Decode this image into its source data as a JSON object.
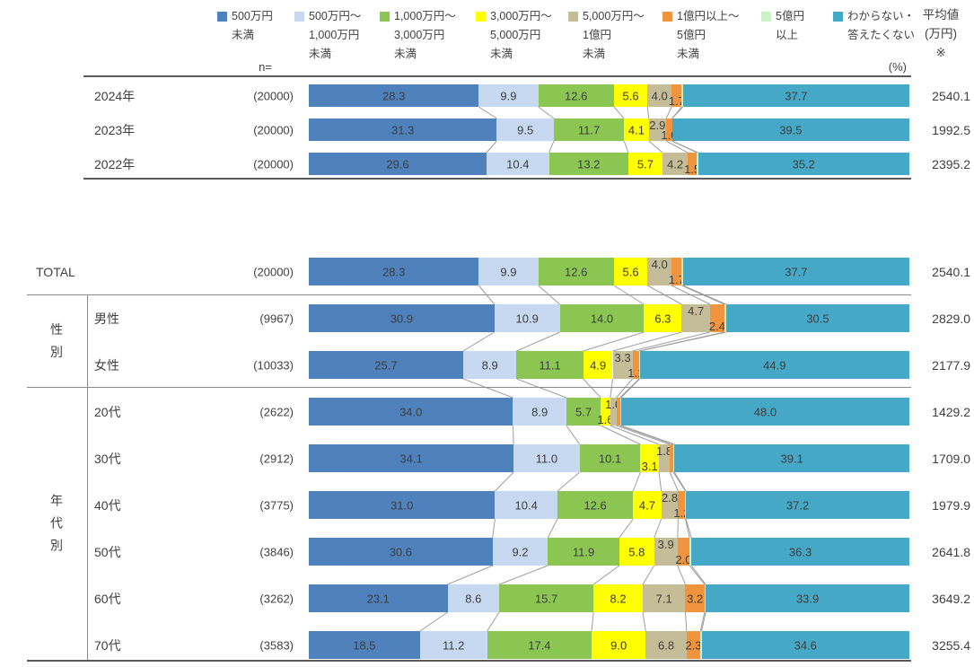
{
  "header": {
    "n_label": "n=",
    "pct_label": "(%)",
    "avg_label_lines": [
      "平均値",
      "(万円)",
      "※"
    ]
  },
  "legend": {
    "items": [
      {
        "label": "500万円未満",
        "lines": [
          "500万円",
          "未満"
        ],
        "color": "#4F81BD"
      },
      {
        "label": "500万円〜1,000万円未満",
        "lines": [
          "500万円〜",
          "1,000万円",
          "未満"
        ],
        "color": "#C6D9F1"
      },
      {
        "label": "1,000万円〜3,000万円未満",
        "lines": [
          "1,000万円〜",
          "3,000万円",
          "未満"
        ],
        "color": "#8CC652"
      },
      {
        "label": "3,000万円〜5,000万円未満",
        "lines": [
          "3,000万円〜",
          "5,000万円",
          "未満"
        ],
        "color": "#FFFF00"
      },
      {
        "label": "5,000万円〜1億円未満",
        "lines": [
          "5,000万円〜",
          "1億円",
          "未満"
        ],
        "color": "#C4BD97"
      },
      {
        "label": "1億円以上〜5億円未満",
        "lines": [
          "1億円以上〜",
          "5億円",
          "未満"
        ],
        "color": "#F0943E"
      },
      {
        "label": "5億円以上",
        "lines": [
          "5億円",
          "以上"
        ],
        "color": "#CCF0C8"
      },
      {
        "label": "わからない・答えたくない",
        "lines": [
          "わからない・",
          "答えたくない"
        ],
        "color": "#45A8C7"
      }
    ]
  },
  "chart_data": {
    "type": "bar",
    "orientation": "horizontal",
    "stacked": true,
    "unit": "%",
    "xlim": [
      0,
      100
    ],
    "grid": false,
    "legend_position": "top",
    "series": [
      "500万円未満",
      "500万円〜1,000万円未満",
      "1,000万円〜3,000万円未満",
      "3,000万円〜5,000万円未満",
      "5,000万円〜1億円未満",
      "1億円以上〜5億円未満",
      "5億円以上",
      "わからない・答えたくない"
    ],
    "value_column_header": "平均値(万円)※",
    "tables": [
      {
        "id": "by-year",
        "rows": [
          {
            "label": "2024年",
            "n": "(20000)",
            "avg": "2540.1",
            "values": [
              28.3,
              9.9,
              12.6,
              5.6,
              4.0,
              1.7,
              0.2,
              37.7
            ],
            "label_pos": [
              "in",
              "in",
              "in",
              "in",
              "in",
              "down",
              "none",
              "in"
            ]
          },
          {
            "label": "2023年",
            "n": "(20000)",
            "avg": "1992.5",
            "values": [
              31.3,
              9.5,
              11.7,
              4.1,
              2.9,
              1.0,
              0.0,
              39.5
            ],
            "label_pos": [
              "in",
              "in",
              "in",
              "in",
              "up",
              "down",
              "none",
              "in"
            ]
          },
          {
            "label": "2022年",
            "n": "(20000)",
            "avg": "2395.2",
            "values": [
              29.6,
              10.4,
              13.2,
              5.7,
              4.2,
              1.5,
              0.2,
              35.2
            ],
            "label_pos": [
              "in",
              "in",
              "in",
              "in",
              "in",
              "down",
              "none",
              "in"
            ]
          }
        ]
      },
      {
        "id": "by-segment",
        "rows": [
          {
            "label": "TOTAL",
            "n": "(20000)",
            "avg": "2540.1",
            "values": [
              28.3,
              9.9,
              12.6,
              5.6,
              4.0,
              1.7,
              0.2,
              37.7
            ],
            "label_pos": [
              "in",
              "in",
              "in",
              "in",
              "up",
              "down",
              "none",
              "in"
            ]
          },
          {
            "label": "男性",
            "n": "(9967)",
            "avg": "2829.0",
            "values": [
              30.9,
              10.9,
              14.0,
              6.3,
              4.7,
              2.4,
              0.3,
              30.5
            ],
            "label_pos": [
              "in",
              "in",
              "in",
              "in",
              "up",
              "down",
              "none",
              "in"
            ]
          },
          {
            "label": "女性",
            "n": "(10033)",
            "avg": "2177.9",
            "values": [
              25.7,
              8.9,
              11.1,
              4.9,
              3.3,
              1.1,
              0.1,
              44.9
            ],
            "label_pos": [
              "in",
              "in",
              "in",
              "in",
              "up",
              "down",
              "none",
              "in"
            ]
          },
          {
            "label": "20代",
            "n": "(2622)",
            "avg": "1429.2",
            "values": [
              34.0,
              8.9,
              5.7,
              1.6,
              1.0,
              0.6,
              0.2,
              48.0
            ],
            "label_pos": [
              "in",
              "in",
              "in",
              "down",
              "up",
              "none",
              "none",
              "in"
            ]
          },
          {
            "label": "30代",
            "n": "(2912)",
            "avg": "1709.0",
            "values": [
              34.1,
              11.0,
              10.1,
              3.1,
              1.8,
              0.6,
              0.2,
              39.1
            ],
            "label_pos": [
              "in",
              "in",
              "in",
              "down",
              "up",
              "none",
              "none",
              "in"
            ]
          },
          {
            "label": "40代",
            "n": "(3775)",
            "avg": "1979.9",
            "values": [
              31.0,
              10.4,
              12.6,
              4.7,
              2.8,
              1.2,
              0.1,
              37.2
            ],
            "label_pos": [
              "in",
              "in",
              "in",
              "in",
              "up",
              "down",
              "none",
              "in"
            ]
          },
          {
            "label": "50代",
            "n": "(3846)",
            "avg": "2641.8",
            "values": [
              30.6,
              9.2,
              11.9,
              5.8,
              3.9,
              2.0,
              0.3,
              36.3
            ],
            "label_pos": [
              "in",
              "in",
              "in",
              "in",
              "up",
              "down",
              "none",
              "in"
            ]
          },
          {
            "label": "60代",
            "n": "(3262)",
            "avg": "3649.2",
            "values": [
              23.1,
              8.6,
              15.7,
              8.2,
              7.1,
              3.2,
              0.2,
              33.9
            ],
            "label_pos": [
              "in",
              "in",
              "in",
              "in",
              "in",
              "in",
              "none",
              "in"
            ]
          },
          {
            "label": "70代",
            "n": "(3583)",
            "avg": "3255.4",
            "values": [
              18.5,
              11.2,
              17.4,
              9.0,
              6.8,
              2.3,
              0.2,
              34.6
            ],
            "label_pos": [
              "in",
              "in",
              "in",
              "in",
              "in",
              "in",
              "none",
              "in"
            ]
          }
        ]
      }
    ],
    "row_groups": [
      {
        "label": "性別",
        "chars": [
          "性",
          "別"
        ],
        "rows": [
          "男性",
          "女性"
        ]
      },
      {
        "label": "年代別",
        "chars": [
          "年",
          "代",
          "別"
        ],
        "rows": [
          "20代",
          "30代",
          "40代",
          "50代",
          "60代",
          "70代"
        ]
      }
    ]
  }
}
